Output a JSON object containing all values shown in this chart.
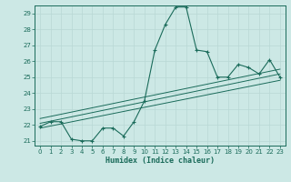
{
  "title": "",
  "xlabel": "Humidex (Indice chaleur)",
  "bg_color": "#cce8e5",
  "grid_color": "#b8d8d5",
  "line_color": "#1a6b5a",
  "axis_color": "#1a6b5a",
  "xlim": [
    -0.5,
    23.5
  ],
  "ylim": [
    20.7,
    29.5
  ],
  "xticks": [
    0,
    1,
    2,
    3,
    4,
    5,
    6,
    7,
    8,
    9,
    10,
    11,
    12,
    13,
    14,
    15,
    16,
    17,
    18,
    19,
    20,
    21,
    22,
    23
  ],
  "yticks": [
    21,
    22,
    23,
    24,
    25,
    26,
    27,
    28,
    29
  ],
  "series1_x": [
    0,
    1,
    2,
    3,
    4,
    5,
    6,
    7,
    8,
    9,
    10,
    11,
    12,
    13,
    14,
    15,
    16,
    17,
    18,
    19,
    20,
    21,
    22,
    23
  ],
  "series1_y": [
    21.9,
    22.2,
    22.2,
    21.1,
    21.0,
    21.0,
    21.8,
    21.8,
    21.3,
    22.2,
    23.5,
    26.7,
    28.3,
    29.4,
    29.4,
    26.7,
    26.6,
    25.0,
    25.0,
    25.8,
    25.6,
    25.2,
    26.1,
    25.0
  ],
  "series2_x": [
    0,
    23
  ],
  "series2_y": [
    21.8,
    24.8
  ],
  "series3_x": [
    0,
    23
  ],
  "series3_y": [
    22.1,
    25.2
  ],
  "series4_x": [
    0,
    23
  ],
  "series4_y": [
    22.4,
    25.5
  ]
}
